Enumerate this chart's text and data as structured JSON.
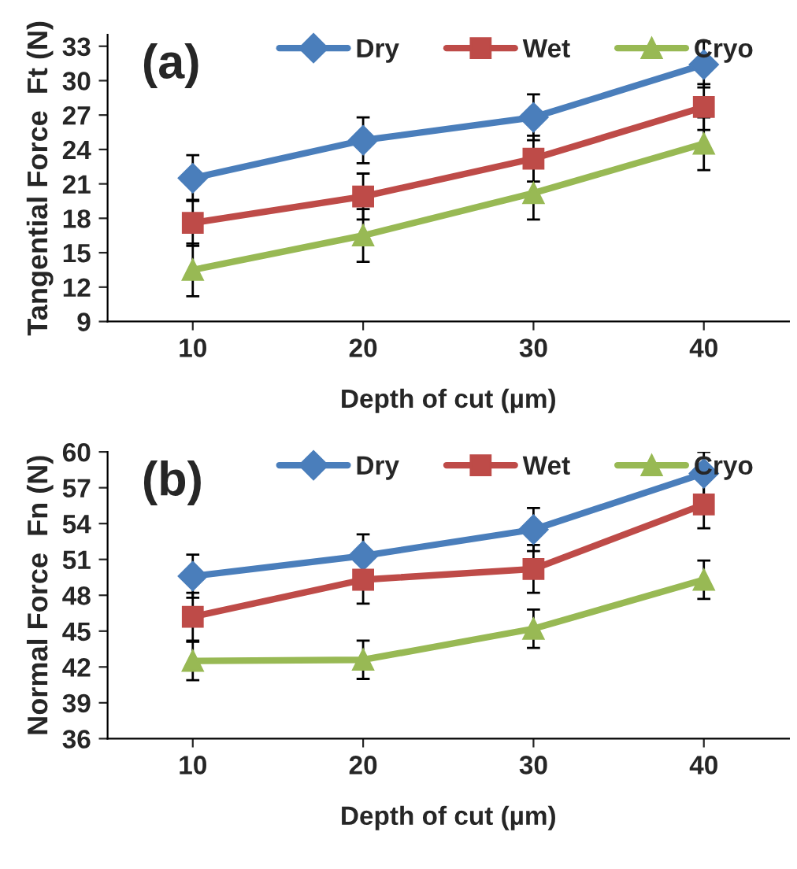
{
  "chart_data": [
    {
      "type": "line",
      "categories": [
        "10",
        "20",
        "30",
        "40"
      ],
      "xlabel": "Depth of cut (µm)",
      "ylabel": "Tangential Force  Ft (N)",
      "ylim": [
        9,
        34
      ],
      "yticks": [
        9,
        12,
        15,
        18,
        21,
        24,
        27,
        30,
        33
      ],
      "grid": false,
      "legend": "top",
      "annotations": [
        "(a)"
      ],
      "series": [
        {
          "name": "Dry",
          "color": "#4a7ebb",
          "marker": "diamond",
          "values": [
            21.5,
            24.8,
            26.8,
            31.4
          ],
          "errors": [
            2,
            2,
            2,
            2
          ]
        },
        {
          "name": "Wet",
          "color": "#be4b48",
          "marker": "square",
          "values": [
            17.6,
            19.9,
            23.2,
            27.7
          ],
          "errors": [
            2,
            2,
            2,
            2
          ]
        },
        {
          "name": "Cryo",
          "color": "#98b954",
          "marker": "triangle",
          "values": [
            13.5,
            16.5,
            20.2,
            24.5
          ],
          "errors": [
            2.3,
            2.3,
            2.3,
            2.3
          ]
        }
      ]
    },
    {
      "type": "line",
      "categories": [
        "10",
        "20",
        "30",
        "40"
      ],
      "xlabel": "Depth of cut (µm)",
      "ylabel": "Normal Force  Fn (N)",
      "ylim": [
        36,
        60
      ],
      "yticks": [
        36,
        39,
        42,
        45,
        48,
        51,
        54,
        57,
        60
      ],
      "grid": false,
      "legend": "top",
      "annotations": [
        "(b)"
      ],
      "series": [
        {
          "name": "Dry",
          "color": "#4a7ebb",
          "marker": "diamond",
          "values": [
            49.6,
            51.3,
            53.5,
            58.2
          ],
          "errors": [
            1.8,
            1.8,
            1.8,
            1.8
          ]
        },
        {
          "name": "Wet",
          "color": "#be4b48",
          "marker": "square",
          "values": [
            46.2,
            49.3,
            50.2,
            55.6
          ],
          "errors": [
            2,
            2,
            2,
            2
          ]
        },
        {
          "name": "Cryo",
          "color": "#98b954",
          "marker": "triangle",
          "values": [
            42.5,
            42.6,
            45.2,
            49.3
          ],
          "errors": [
            1.6,
            1.6,
            1.6,
            1.6
          ]
        }
      ]
    }
  ]
}
